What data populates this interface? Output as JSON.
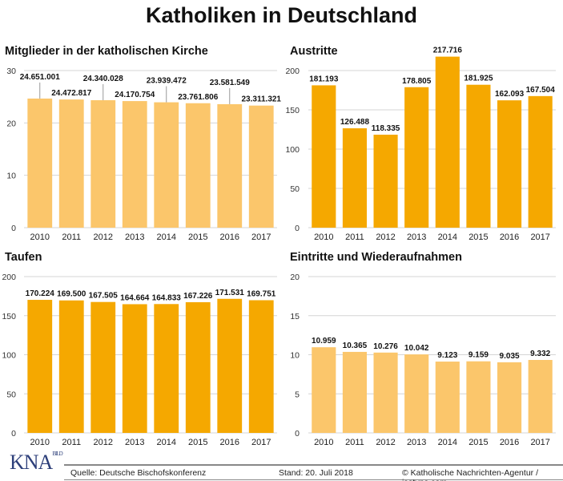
{
  "title": "Katholiken in Deutschland",
  "footer": {
    "source": "Quelle: Deutsche Bischofskonferenz",
    "date": "Stand: 20. Juli 2018",
    "copyright": "© Katholische Nachrichten-Agentur / isotype.com",
    "logo": "KNA"
  },
  "colors": {
    "light": "#fbc66b",
    "dark": "#f5a800",
    "grid": "#d4d4d4"
  },
  "chart_data": [
    {
      "type": "bar",
      "title": "Mitglieder in der katholischen Kirche",
      "categories": [
        "2010",
        "2011",
        "2012",
        "2013",
        "2014",
        "2015",
        "2016",
        "2017"
      ],
      "values": [
        24.651001,
        24.472817,
        24.340028,
        24.170754,
        23.939472,
        23.761806,
        23.581549,
        23.311321
      ],
      "labels": [
        "24.651.001",
        "24.472.817",
        "24.340.028",
        "24.170.754",
        "23.939.472",
        "23.761.806",
        "23.581.549",
        "23.311.321"
      ],
      "ylim": [
        0,
        30
      ],
      "yticks": [
        "0",
        "10",
        "20",
        "30"
      ],
      "color": "light",
      "grid": true
    },
    {
      "type": "bar",
      "title": "Austritte",
      "categories": [
        "2010",
        "2011",
        "2012",
        "2013",
        "2014",
        "2015",
        "2016",
        "2017"
      ],
      "values": [
        181.193,
        126.488,
        118.335,
        178.805,
        217.716,
        181.925,
        162.093,
        167.504
      ],
      "labels": [
        "181.193",
        "126.488",
        "118.335",
        "178.805",
        "217.716",
        "181.925",
        "162.093",
        "167.504"
      ],
      "ylim": [
        0,
        200
      ],
      "yticks": [
        "0",
        "50",
        "100",
        "150",
        "200"
      ],
      "color": "dark",
      "grid": true
    },
    {
      "type": "bar",
      "title": "Taufen",
      "categories": [
        "2010",
        "2011",
        "2012",
        "2013",
        "2014",
        "2015",
        "2016",
        "2017"
      ],
      "values": [
        170.224,
        169.5,
        167.505,
        164.664,
        164.833,
        167.226,
        171.531,
        169.751
      ],
      "labels": [
        "170.224",
        "169.500",
        "167.505",
        "164.664",
        "164.833",
        "167.226",
        "171.531",
        "169.751"
      ],
      "ylim": [
        0,
        200
      ],
      "yticks": [
        "0",
        "50",
        "100",
        "150",
        "200"
      ],
      "color": "dark",
      "grid": true
    },
    {
      "type": "bar",
      "title": "Eintritte und Wiederaufnahmen",
      "categories": [
        "2010",
        "2011",
        "2012",
        "2013",
        "2014",
        "2015",
        "2016",
        "2017"
      ],
      "values": [
        10.959,
        10.365,
        10.276,
        10.042,
        9.123,
        9.159,
        9.035,
        9.332
      ],
      "labels": [
        "10.959",
        "10.365",
        "10.276",
        "10.042",
        "9.123",
        "9.159",
        "9.035",
        "9.332"
      ],
      "ylim": [
        0,
        20
      ],
      "yticks": [
        "0",
        "5",
        "10",
        "15",
        "20"
      ],
      "color": "light",
      "grid": true
    }
  ]
}
